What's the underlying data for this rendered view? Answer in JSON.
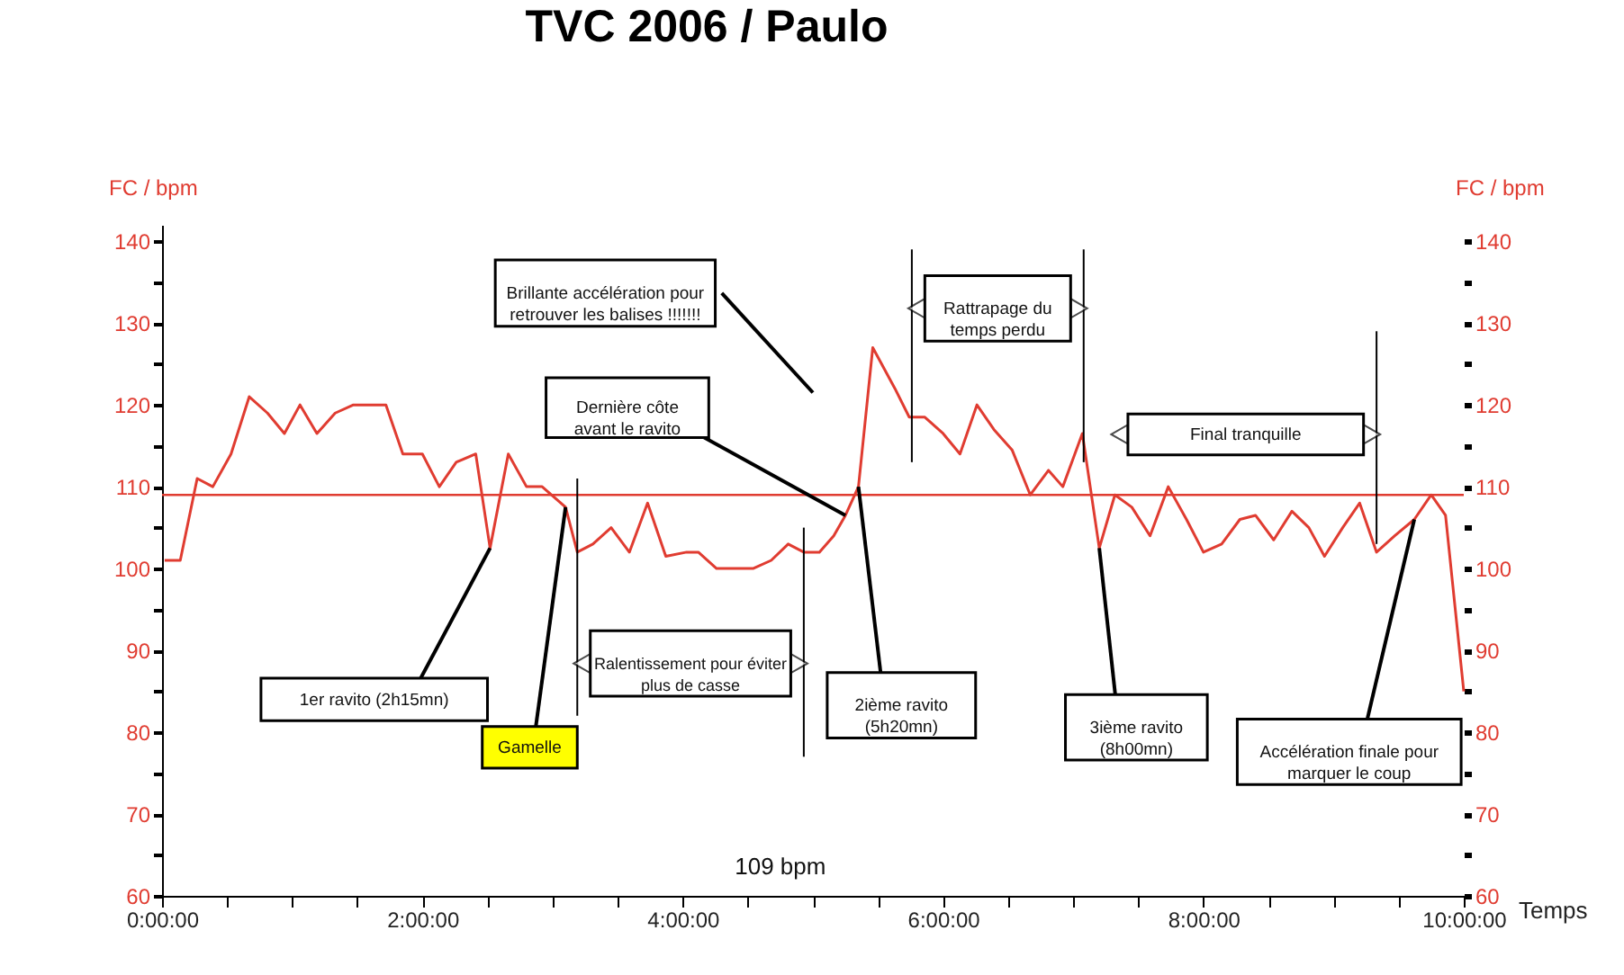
{
  "chart_data": {
    "type": "line",
    "title": "TVC 2006  / Paulo",
    "xlabel": "Temps",
    "ylabel": "FC / bpm",
    "y2label": "FC / bpm",
    "x": [
      0.02,
      0.14,
      0.27,
      0.39,
      0.53,
      0.67,
      0.81,
      0.94,
      1.06,
      1.19,
      1.33,
      1.47,
      1.72,
      1.85,
      2.0,
      2.13,
      2.26,
      2.41,
      2.52,
      2.66,
      2.8,
      2.92,
      3.1,
      3.19,
      3.31,
      3.45,
      3.59,
      3.73,
      3.87,
      4.03,
      4.12,
      4.26,
      4.54,
      4.68,
      4.81,
      4.93,
      5.05,
      5.16,
      5.25,
      5.35,
      5.46,
      5.63,
      5.74,
      5.86,
      6.0,
      6.13,
      6.26,
      6.39,
      6.53,
      6.67,
      6.81,
      6.92,
      7.07,
      7.2,
      7.32,
      7.45,
      7.59,
      7.73,
      7.87,
      8.0,
      8.14,
      8.28,
      8.4,
      8.54,
      8.68,
      8.81,
      8.93,
      9.07,
      9.2,
      9.33,
      9.47,
      9.62,
      9.75,
      9.86,
      10.0
    ],
    "series": [
      {
        "color": "#e03c31",
        "values": [
          101,
          101,
          111,
          110,
          114,
          121,
          119,
          116.5,
          120,
          116.5,
          119,
          120,
          120,
          114,
          114,
          110,
          113,
          114,
          102.5,
          114,
          110,
          110,
          107.5,
          102,
          103,
          105,
          102,
          108,
          101.5,
          102,
          102,
          100,
          100,
          101,
          103,
          102,
          102,
          104,
          106.5,
          110,
          127,
          122,
          118.5,
          118.5,
          116.5,
          114,
          120,
          117,
          114.5,
          109,
          112,
          110,
          116.5,
          102.5,
          109,
          107.5,
          104,
          110,
          106,
          102,
          103,
          106,
          106.5,
          103.5,
          107,
          105,
          101.5,
          105,
          108,
          102,
          104,
          106,
          109,
          106.5,
          85
        ]
      }
    ],
    "xlim": [
      0,
      10
    ],
    "xticks": [
      {
        "value": 0,
        "label": "0:00:00"
      },
      {
        "value": 0.5,
        "label": null
      },
      {
        "value": 1,
        "label": null
      },
      {
        "value": 1.5,
        "label": null
      },
      {
        "value": 2,
        "label": "2:00:00"
      },
      {
        "value": 2.5,
        "label": null
      },
      {
        "value": 3,
        "label": null
      },
      {
        "value": 3.5,
        "label": null
      },
      {
        "value": 4,
        "label": "4:00:00"
      },
      {
        "value": 4.5,
        "label": null
      },
      {
        "value": 5,
        "label": null
      },
      {
        "value": 5.5,
        "label": null
      },
      {
        "value": 6,
        "label": "6:00:00"
      },
      {
        "value": 6.5,
        "label": null
      },
      {
        "value": 7,
        "label": null
      },
      {
        "value": 7.5,
        "label": null
      },
      {
        "value": 8,
        "label": "8:00:00"
      },
      {
        "value": 8.5,
        "label": null
      },
      {
        "value": 9,
        "label": null
      },
      {
        "value": 9.5,
        "label": null
      },
      {
        "value": 10,
        "label": "10:00:00"
      }
    ],
    "ylim": [
      60,
      142
    ],
    "yticks": [
      60,
      {
        "value": 65,
        "label": null
      },
      70,
      {
        "value": 75,
        "label": null
      },
      80,
      {
        "value": 85,
        "label": null
      },
      90,
      {
        "value": 95,
        "label": null
      },
      100,
      {
        "value": 105,
        "label": null
      },
      110,
      {
        "value": 115,
        "label": null
      },
      120,
      {
        "value": 125,
        "label": null
      },
      130,
      {
        "value": 135,
        "label": null
      },
      140
    ],
    "y2lim": [
      60,
      142
    ],
    "y2ticks": [
      60,
      {
        "value": 65,
        "label": null
      },
      70,
      {
        "value": 75,
        "label": null
      },
      80,
      {
        "value": 85,
        "label": null
      },
      90,
      {
        "value": 95,
        "label": null
      },
      100,
      {
        "value": 105,
        "label": null
      },
      110,
      {
        "value": 115,
        "label": null
      },
      120,
      {
        "value": 125,
        "label": null
      },
      130,
      {
        "value": 135,
        "label": null
      },
      140
    ],
    "ref_lines": [
      {
        "axis": "y",
        "value": 109,
        "color": "#e03c31"
      }
    ],
    "grid": false,
    "marker": "none",
    "line_style": "solid",
    "annotations": [
      "Brillante accélération pour retrouver les balises !!!!!!!",
      {
        "text": "Dernière côte avant le ravito",
        "x": 5.25,
        "y": 106.5
      },
      "Rattrapage du temps perdu",
      "Final tranquille",
      {
        "text": "1er ravito (2h15mn)",
        "x": 2.52,
        "y": 102.5
      },
      {
        "text": "Gamelle",
        "x": 3.1,
        "y": 107.5
      },
      "Ralentissement pour éviter plus de casse",
      {
        "text": "2ième ravito (5h20mn)",
        "x": 5.35,
        "y": 110
      },
      {
        "text": "3ième ravito (8h00mn)",
        "x": 7.2,
        "y": 102.5
      },
      {
        "text": "Accélération finale pour marquer le coup",
        "x": 9.62,
        "y": 106
      },
      "109 bpm"
    ]
  }
}
